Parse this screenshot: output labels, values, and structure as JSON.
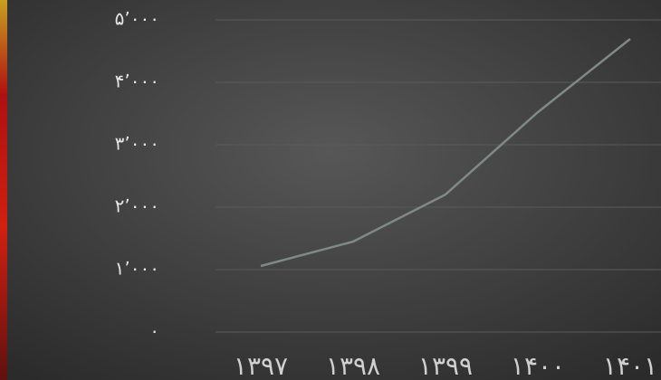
{
  "chart_data": {
    "type": "line",
    "categories": [
      "۱۳۹۷",
      "۱۳۹۸",
      "۱۳۹۹",
      "۱۴۰۰",
      "۱۴۰۱"
    ],
    "values": [
      1058,
      1449,
      2203,
      3522,
      4696
    ],
    "color": "#7d8a86",
    "ylim": [
      0,
      5000
    ],
    "yticks": [
      {
        "value": 0,
        "label": "۰"
      },
      {
        "value": 1000,
        "label": "۱٬۰۰۰"
      },
      {
        "value": 2000,
        "label": "۲٬۰۰۰"
      },
      {
        "value": 3000,
        "label": "۳٬۰۰۰"
      },
      {
        "value": 4000,
        "label": "۴٬۰۰۰"
      },
      {
        "value": 5000,
        "label": "۵٬۰۰۰"
      }
    ],
    "grid": true
  }
}
